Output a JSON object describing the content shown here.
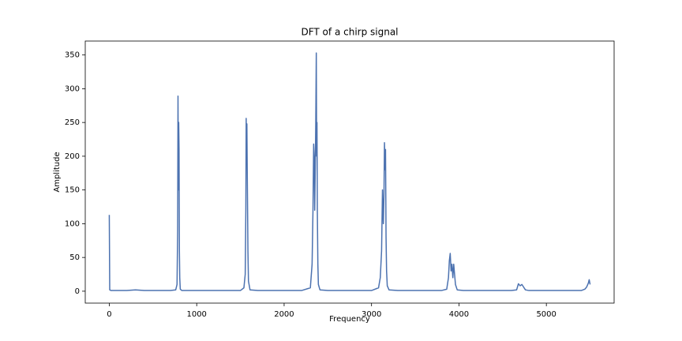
{
  "chart_data": {
    "type": "line",
    "title": "DFT of a chirp signal",
    "x_label": "Frequency",
    "y_label": "Amplitude",
    "x": [
      0,
      5,
      20,
      100,
      200,
      300,
      400,
      500,
      600,
      700,
      760,
      775,
      782,
      786,
      790,
      794,
      798,
      802,
      806,
      812,
      830,
      900,
      1000,
      1100,
      1200,
      1300,
      1400,
      1500,
      1540,
      1555,
      1562,
      1566,
      1570,
      1574,
      1578,
      1582,
      1586,
      1592,
      1610,
      1700,
      1800,
      1900,
      2000,
      2100,
      2200,
      2300,
      2320,
      2330,
      2338,
      2344,
      2350,
      2356,
      2362,
      2368,
      2372,
      2376,
      2380,
      2386,
      2392,
      2410,
      2500,
      2600,
      2700,
      2800,
      2900,
      3000,
      3080,
      3100,
      3115,
      3125,
      3135,
      3142,
      3148,
      3154,
      3160,
      3166,
      3172,
      3180,
      3200,
      3300,
      3400,
      3500,
      3600,
      3700,
      3800,
      3860,
      3880,
      3890,
      3900,
      3910,
      3920,
      3930,
      3940,
      3950,
      3960,
      3980,
      4050,
      4200,
      4400,
      4600,
      4660,
      4680,
      4700,
      4720,
      4740,
      4760,
      4800,
      5000,
      5200,
      5400,
      5440,
      5460,
      5480,
      5490,
      5500
    ],
    "series": [
      {
        "color": "#4c72b0",
        "values": [
          113,
          2,
          1,
          1,
          1,
          2,
          1,
          1,
          1,
          1,
          2,
          10,
          90,
          289,
          150,
          250,
          210,
          60,
          20,
          3,
          1,
          1,
          1,
          1,
          1,
          1,
          1,
          1,
          5,
          25,
          120,
          256,
          200,
          248,
          180,
          120,
          60,
          15,
          2,
          1,
          1,
          1,
          1,
          1,
          1,
          5,
          40,
          120,
          218,
          200,
          120,
          180,
          250,
          353,
          200,
          250,
          120,
          40,
          10,
          2,
          1,
          1,
          1,
          1,
          1,
          1,
          5,
          20,
          60,
          150,
          100,
          140,
          220,
          180,
          210,
          80,
          30,
          8,
          2,
          1,
          1,
          1,
          1,
          1,
          1,
          3,
          20,
          45,
          56,
          30,
          40,
          20,
          40,
          25,
          10,
          2,
          1,
          1,
          1,
          1,
          2,
          11,
          8,
          10,
          6,
          2,
          1,
          1,
          1,
          1,
          3,
          6,
          12,
          17,
          10
        ]
      }
    ],
    "xlim": [
      -275,
      5775
    ],
    "xticks": [
      0,
      1000,
      2000,
      3000,
      4000,
      5000
    ],
    "ylim": [
      -17.65,
      370.65
    ],
    "yticks": [
      0,
      50,
      100,
      150,
      200,
      250,
      300,
      350
    ],
    "grid": false
  }
}
